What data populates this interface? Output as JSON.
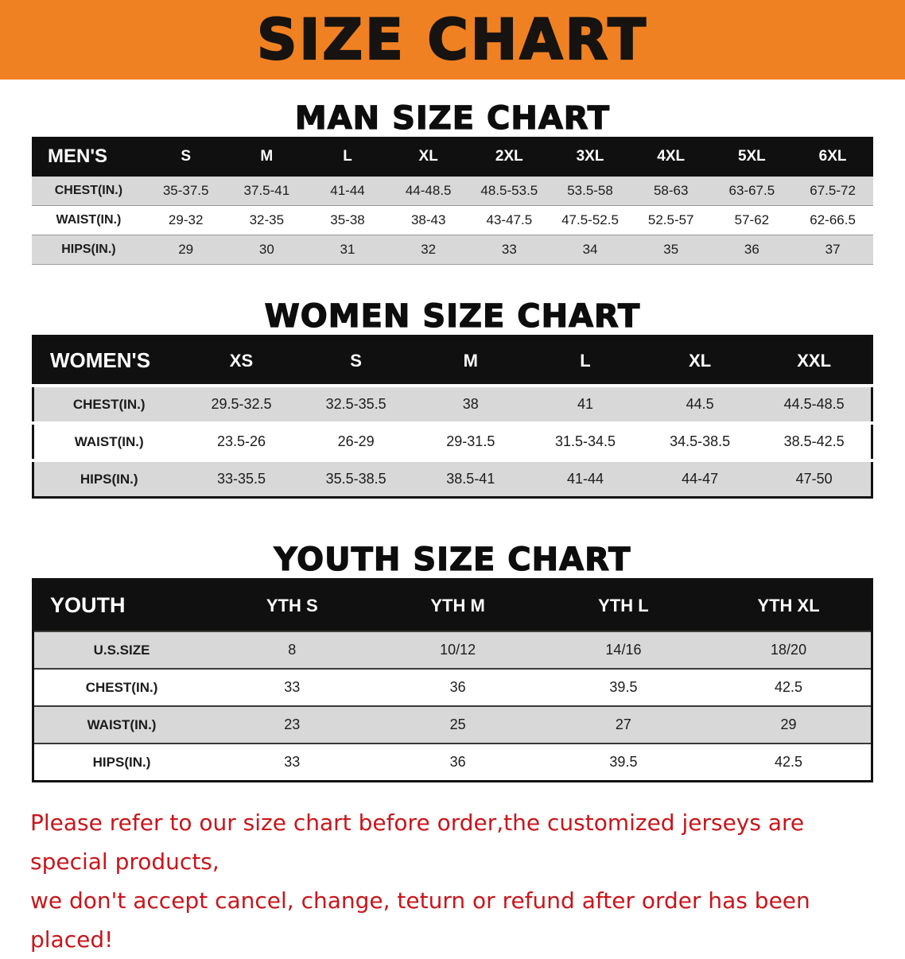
{
  "banner": {
    "title": "SIZE CHART",
    "bg_color": "#f08122",
    "text_color": "#171310"
  },
  "sections": [
    {
      "heading": "MAN SIZE CHART",
      "table": {
        "header_label": "MEN'S",
        "columns": [
          "S",
          "M",
          "L",
          "XL",
          "2XL",
          "3XL",
          "4XL",
          "5XL",
          "6XL"
        ],
        "rows": [
          {
            "label": "CHEST(IN.)",
            "values": [
              "35-37.5",
              "37.5-41",
              "41-44",
              "44-48.5",
              "48.5-53.5",
              "53.5-58",
              "58-63",
              "63-67.5",
              "67.5-72"
            ]
          },
          {
            "label": "WAIST(IN.)",
            "values": [
              "29-32",
              "32-35",
              "35-38",
              "38-43",
              "43-47.5",
              "47.5-52.5",
              "52.5-57",
              "57-62",
              "62-66.5"
            ]
          },
          {
            "label": "HIPS(IN.)",
            "values": [
              "29",
              "30",
              "31",
              "32",
              "33",
              "34",
              "35",
              "36",
              "37"
            ]
          }
        ]
      }
    },
    {
      "heading": "WOMEN SIZE CHART",
      "table": {
        "header_label": "WOMEN'S",
        "columns": [
          "XS",
          "S",
          "M",
          "L",
          "XL",
          "XXL"
        ],
        "rows": [
          {
            "label": "CHEST(IN.)",
            "values": [
              "29.5-32.5",
              "32.5-35.5",
              "38",
              "41",
              "44.5",
              "44.5-48.5"
            ]
          },
          {
            "label": "WAIST(IN.)",
            "values": [
              "23.5-26",
              "26-29",
              "29-31.5",
              "31.5-34.5",
              "34.5-38.5",
              "38.5-42.5"
            ]
          },
          {
            "label": "HIPS(IN.)",
            "values": [
              "33-35.5",
              "35.5-38.5",
              "38.5-41",
              "41-44",
              "44-47",
              "47-50"
            ]
          }
        ]
      }
    },
    {
      "heading": "YOUTH SIZE CHART",
      "table": {
        "header_label": "YOUTH",
        "columns": [
          "YTH S",
          "YTH M",
          "YTH L",
          "YTH XL"
        ],
        "rows": [
          {
            "label": "U.S.SIZE",
            "values": [
              "8",
              "10/12",
              "14/16",
              "18/20"
            ]
          },
          {
            "label": "CHEST(IN.)",
            "values": [
              "33",
              "36",
              "39.5",
              "42.5"
            ]
          },
          {
            "label": "WAIST(IN.)",
            "values": [
              "23",
              "25",
              "27",
              "29"
            ]
          },
          {
            "label": "HIPS(IN.)",
            "values": [
              "33",
              "36",
              "39.5",
              "42.5"
            ]
          }
        ]
      }
    }
  ],
  "footer": {
    "line1": "Please refer to our size chart before order,the customized jerseys are special products,",
    "line2": "we don't accept cancel, change, teturn or refund after order has been placed!",
    "text_color": "#c9151b"
  }
}
